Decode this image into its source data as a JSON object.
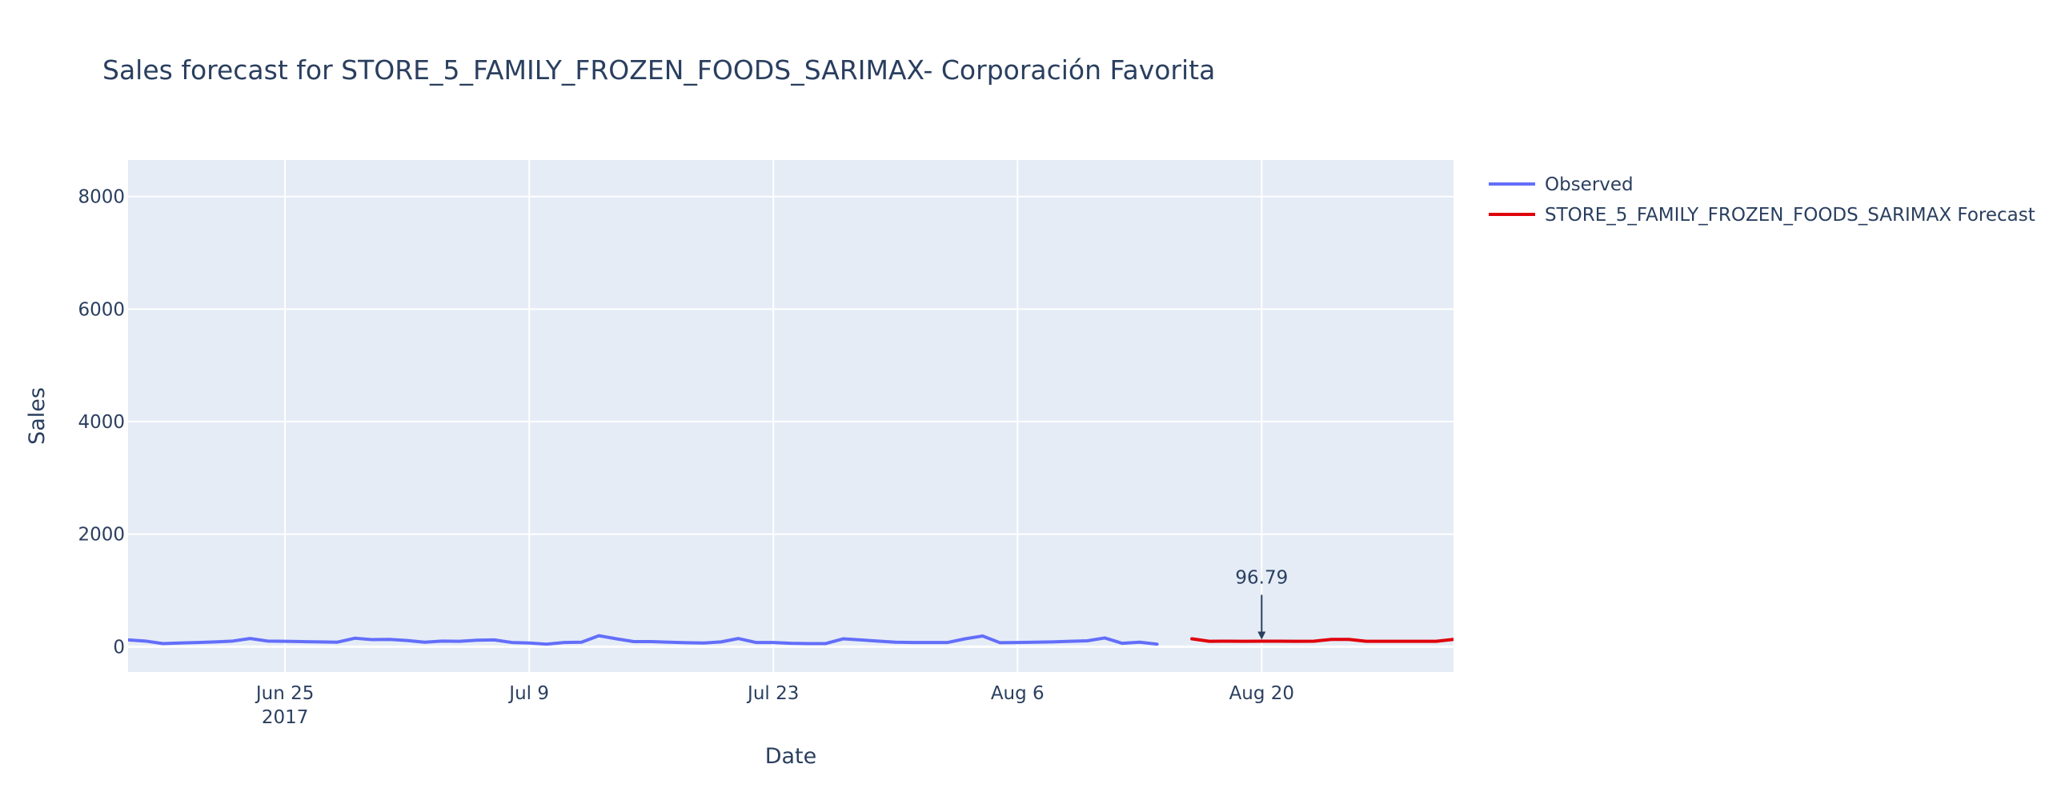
{
  "chart_data": {
    "type": "line",
    "title": "Sales forecast for STORE_5_FAMILY_FROZEN_FOODS_SARIMAX- Corporación Favorita",
    "xlabel": "Date",
    "ylabel": "Sales",
    "x_range": [
      "2017-06-16",
      "2017-08-31"
    ],
    "ylim": [
      -450,
      8650
    ],
    "y_ticks": [
      0,
      2000,
      4000,
      6000,
      8000
    ],
    "y_tick_labels": [
      "0",
      "2000",
      "4000",
      "6000",
      "8000"
    ],
    "x_ticks": [
      {
        "date": "2017-06-25",
        "label": "Jun 25",
        "sublabel": "2017"
      },
      {
        "date": "2017-07-09",
        "label": "Jul 9",
        "sublabel": ""
      },
      {
        "date": "2017-07-23",
        "label": "Jul 23",
        "sublabel": ""
      },
      {
        "date": "2017-08-06",
        "label": "Aug 6",
        "sublabel": ""
      },
      {
        "date": "2017-08-20",
        "label": "Aug 20",
        "sublabel": ""
      }
    ],
    "grid": true,
    "legend_position": "right-top",
    "series": [
      {
        "name": "Observed",
        "color": "#636efa",
        "start_date": "2017-06-16",
        "values": [
          120,
          100,
          55,
          65,
          75,
          85,
          100,
          145,
          100,
          95,
          90,
          85,
          80,
          150,
          125,
          130,
          110,
          80,
          100,
          95,
          115,
          120,
          75,
          65,
          45,
          75,
          80,
          195,
          140,
          90,
          90,
          80,
          70,
          65,
          85,
          145,
          75,
          75,
          60,
          55,
          55,
          140,
          120,
          100,
          80,
          75,
          75,
          75,
          140,
          190,
          70,
          75,
          80,
          85,
          95,
          105,
          155,
          60,
          80,
          45
        ]
      },
      {
        "name": "STORE_5_FAMILY_FROZEN_FOODS_SARIMAX Forecast",
        "color": "#e0000a",
        "start_date": "2017-08-16",
        "values": [
          140,
          96,
          98,
          96,
          97,
          96.79,
          96,
          98,
          130,
          130,
          96,
          96,
          96,
          96,
          96,
          130,
          130,
          95
        ]
      }
    ],
    "annotations": [
      {
        "date": "2017-08-20",
        "value": 96.79,
        "text": "96.79"
      }
    ]
  }
}
